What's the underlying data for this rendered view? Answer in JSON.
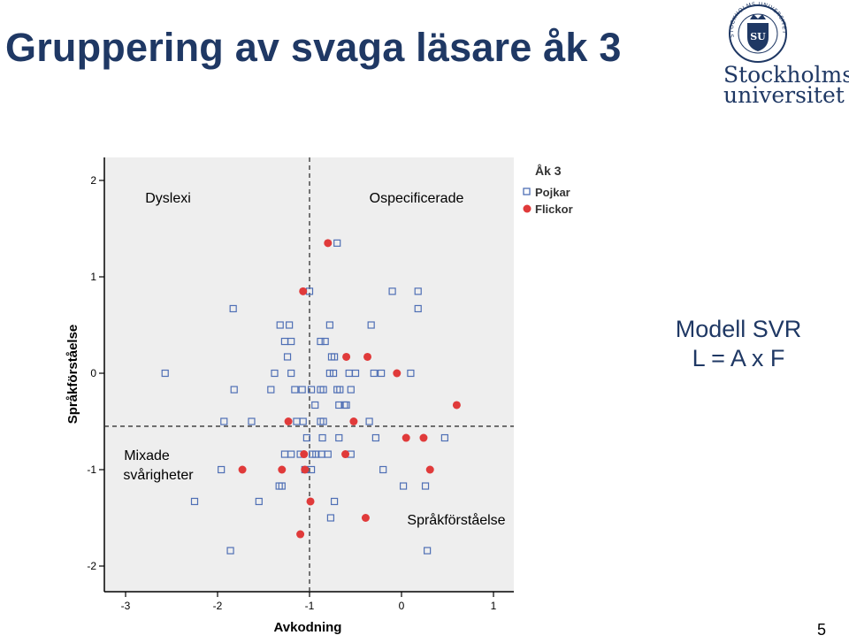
{
  "slide": {
    "title": "Gruppering av svaga läsare åk 3",
    "model_line1": "Modell SVR",
    "model_line2": "L = A x F",
    "page_number": "5"
  },
  "logo": {
    "name_line1": "Stockholms",
    "name_line2": "universitet",
    "seal_text": "STOCKHOLMS UNIVERSITET",
    "seal_monogram": "SU"
  },
  "colors": {
    "title": "#1f3864",
    "boys_marker": "#4f6fb5",
    "girls_marker": "#e03a3a",
    "plot_bg": "#eeeeee"
  },
  "chart_data": {
    "type": "scatter",
    "title": "",
    "xlabel": "Avkodning",
    "ylabel": "Språkförståelse",
    "xlim": [
      -3.3,
      1.2
    ],
    "ylim": [
      -2.25,
      2.25
    ],
    "xticks": [
      "-3",
      "-2",
      "-1",
      "0",
      "1"
    ],
    "yticks": [
      "2",
      "1",
      "0",
      "-1",
      "-2"
    ],
    "grid": false,
    "legend_position": "right-top",
    "legend_title": "Åk 3",
    "reference_lines": {
      "x": -1.0,
      "y": -0.55
    },
    "annotations": [
      "Dyslexi",
      "Ospecificerade",
      "Mixade",
      "svårigheter",
      "Språkförståelse"
    ],
    "series": [
      {
        "name": "Pojkar",
        "marker": "square-open",
        "points": [
          [
            -0.7,
            1.35
          ],
          [
            -1.0,
            0.85
          ],
          [
            -0.1,
            0.85
          ],
          [
            0.18,
            0.85
          ],
          [
            -1.83,
            0.67
          ],
          [
            0.18,
            0.67
          ],
          [
            -1.32,
            0.5
          ],
          [
            -1.22,
            0.5
          ],
          [
            -0.78,
            0.5
          ],
          [
            -0.33,
            0.5
          ],
          [
            -1.27,
            0.33
          ],
          [
            -1.2,
            0.33
          ],
          [
            -0.88,
            0.33
          ],
          [
            -0.83,
            0.33
          ],
          [
            -1.24,
            0.17
          ],
          [
            -0.76,
            0.17
          ],
          [
            -0.73,
            0.17
          ],
          [
            -2.57,
            0.0
          ],
          [
            -1.38,
            0.0
          ],
          [
            -1.2,
            0.0
          ],
          [
            -0.78,
            0.0
          ],
          [
            -0.74,
            0.0
          ],
          [
            -0.57,
            0.0
          ],
          [
            -0.5,
            0.0
          ],
          [
            -0.3,
            0.0
          ],
          [
            -0.22,
            0.0
          ],
          [
            0.1,
            0.0
          ],
          [
            -1.82,
            -0.17
          ],
          [
            -1.42,
            -0.17
          ],
          [
            -1.16,
            -0.17
          ],
          [
            -1.08,
            -0.17
          ],
          [
            -0.98,
            -0.17
          ],
          [
            -0.88,
            -0.17
          ],
          [
            -0.85,
            -0.17
          ],
          [
            -0.7,
            -0.17
          ],
          [
            -0.67,
            -0.17
          ],
          [
            -0.55,
            -0.17
          ],
          [
            -0.94,
            -0.33
          ],
          [
            -0.68,
            -0.33
          ],
          [
            -0.62,
            -0.33
          ],
          [
            -0.6,
            -0.33
          ],
          [
            -1.93,
            -0.5
          ],
          [
            -1.63,
            -0.5
          ],
          [
            -1.14,
            -0.5
          ],
          [
            -1.07,
            -0.5
          ],
          [
            -0.88,
            -0.5
          ],
          [
            -0.85,
            -0.5
          ],
          [
            -0.35,
            -0.5
          ],
          [
            -1.03,
            -0.67
          ],
          [
            -0.86,
            -0.67
          ],
          [
            -0.68,
            -0.67
          ],
          [
            -0.28,
            -0.67
          ],
          [
            0.47,
            -0.67
          ],
          [
            -1.27,
            -0.84
          ],
          [
            -1.2,
            -0.84
          ],
          [
            -1.1,
            -0.84
          ],
          [
            -0.97,
            -0.84
          ],
          [
            -0.93,
            -0.84
          ],
          [
            -0.87,
            -0.84
          ],
          [
            -0.8,
            -0.84
          ],
          [
            -0.55,
            -0.84
          ],
          [
            -1.96,
            -1.0
          ],
          [
            -1.05,
            -1.0
          ],
          [
            -0.98,
            -1.0
          ],
          [
            -0.2,
            -1.0
          ],
          [
            -1.33,
            -1.17
          ],
          [
            -1.3,
            -1.17
          ],
          [
            0.02,
            -1.17
          ],
          [
            0.26,
            -1.17
          ],
          [
            -2.25,
            -1.33
          ],
          [
            -1.55,
            -1.33
          ],
          [
            -0.73,
            -1.33
          ],
          [
            -0.77,
            -1.5
          ],
          [
            -1.86,
            -1.84
          ],
          [
            0.28,
            -1.84
          ]
        ]
      },
      {
        "name": "Flickor",
        "marker": "circle-filled",
        "points": [
          [
            -0.8,
            1.35
          ],
          [
            -1.07,
            0.85
          ],
          [
            -0.6,
            0.17
          ],
          [
            -0.37,
            0.17
          ],
          [
            -0.05,
            0.0
          ],
          [
            0.6,
            -0.33
          ],
          [
            -1.23,
            -0.5
          ],
          [
            -0.52,
            -0.5
          ],
          [
            0.05,
            -0.67
          ],
          [
            0.24,
            -0.67
          ],
          [
            -1.06,
            -0.84
          ],
          [
            -0.61,
            -0.84
          ],
          [
            -1.73,
            -1.0
          ],
          [
            -1.3,
            -1.0
          ],
          [
            -1.05,
            -1.0
          ],
          [
            0.31,
            -1.0
          ],
          [
            -0.99,
            -1.33
          ],
          [
            -0.39,
            -1.5
          ],
          [
            -1.1,
            -1.67
          ]
        ]
      }
    ]
  }
}
